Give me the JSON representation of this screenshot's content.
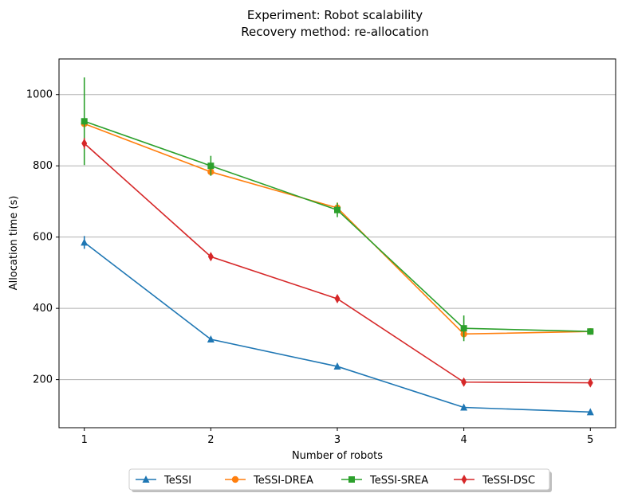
{
  "chart_data": {
    "type": "line",
    "title": "Experiment: Robot scalability",
    "subtitle": "Recovery method: re-allocation",
    "xlabel": "Number of robots",
    "ylabel": "Allocation time (s)",
    "x": [
      1,
      2,
      3,
      4,
      5
    ],
    "xlim": [
      0.8,
      5.2
    ],
    "ylim": [
      65,
      1100
    ],
    "xticks": [
      "1",
      "2",
      "3",
      "4",
      "5"
    ],
    "yticks": [
      200,
      400,
      600,
      800,
      1000
    ],
    "grid": "horizontal",
    "legend_position": "bottom-center",
    "series": [
      {
        "name": "TeSSI",
        "color": "#1f77b4",
        "marker": "triangle",
        "values": [
          585,
          313,
          237,
          122,
          109
        ],
        "errors": [
          18,
          5,
          5,
          5,
          4
        ]
      },
      {
        "name": "TeSSI-DREA",
        "color": "#ff7f0e",
        "marker": "circle",
        "values": [
          918,
          783,
          682,
          328,
          335
        ],
        "errors": [
          10,
          8,
          15,
          12,
          5
        ]
      },
      {
        "name": "TeSSI-SREA",
        "color": "#2ca02c",
        "marker": "square",
        "values": [
          925,
          800,
          676,
          344,
          335
        ],
        "errors": [
          123,
          28,
          20,
          36,
          5
        ]
      },
      {
        "name": "TeSSI-DSC",
        "color": "#d62728",
        "marker": "diamond",
        "values": [
          863,
          545,
          427,
          193,
          191
        ],
        "errors": [
          15,
          5,
          5,
          5,
          5
        ]
      }
    ]
  }
}
